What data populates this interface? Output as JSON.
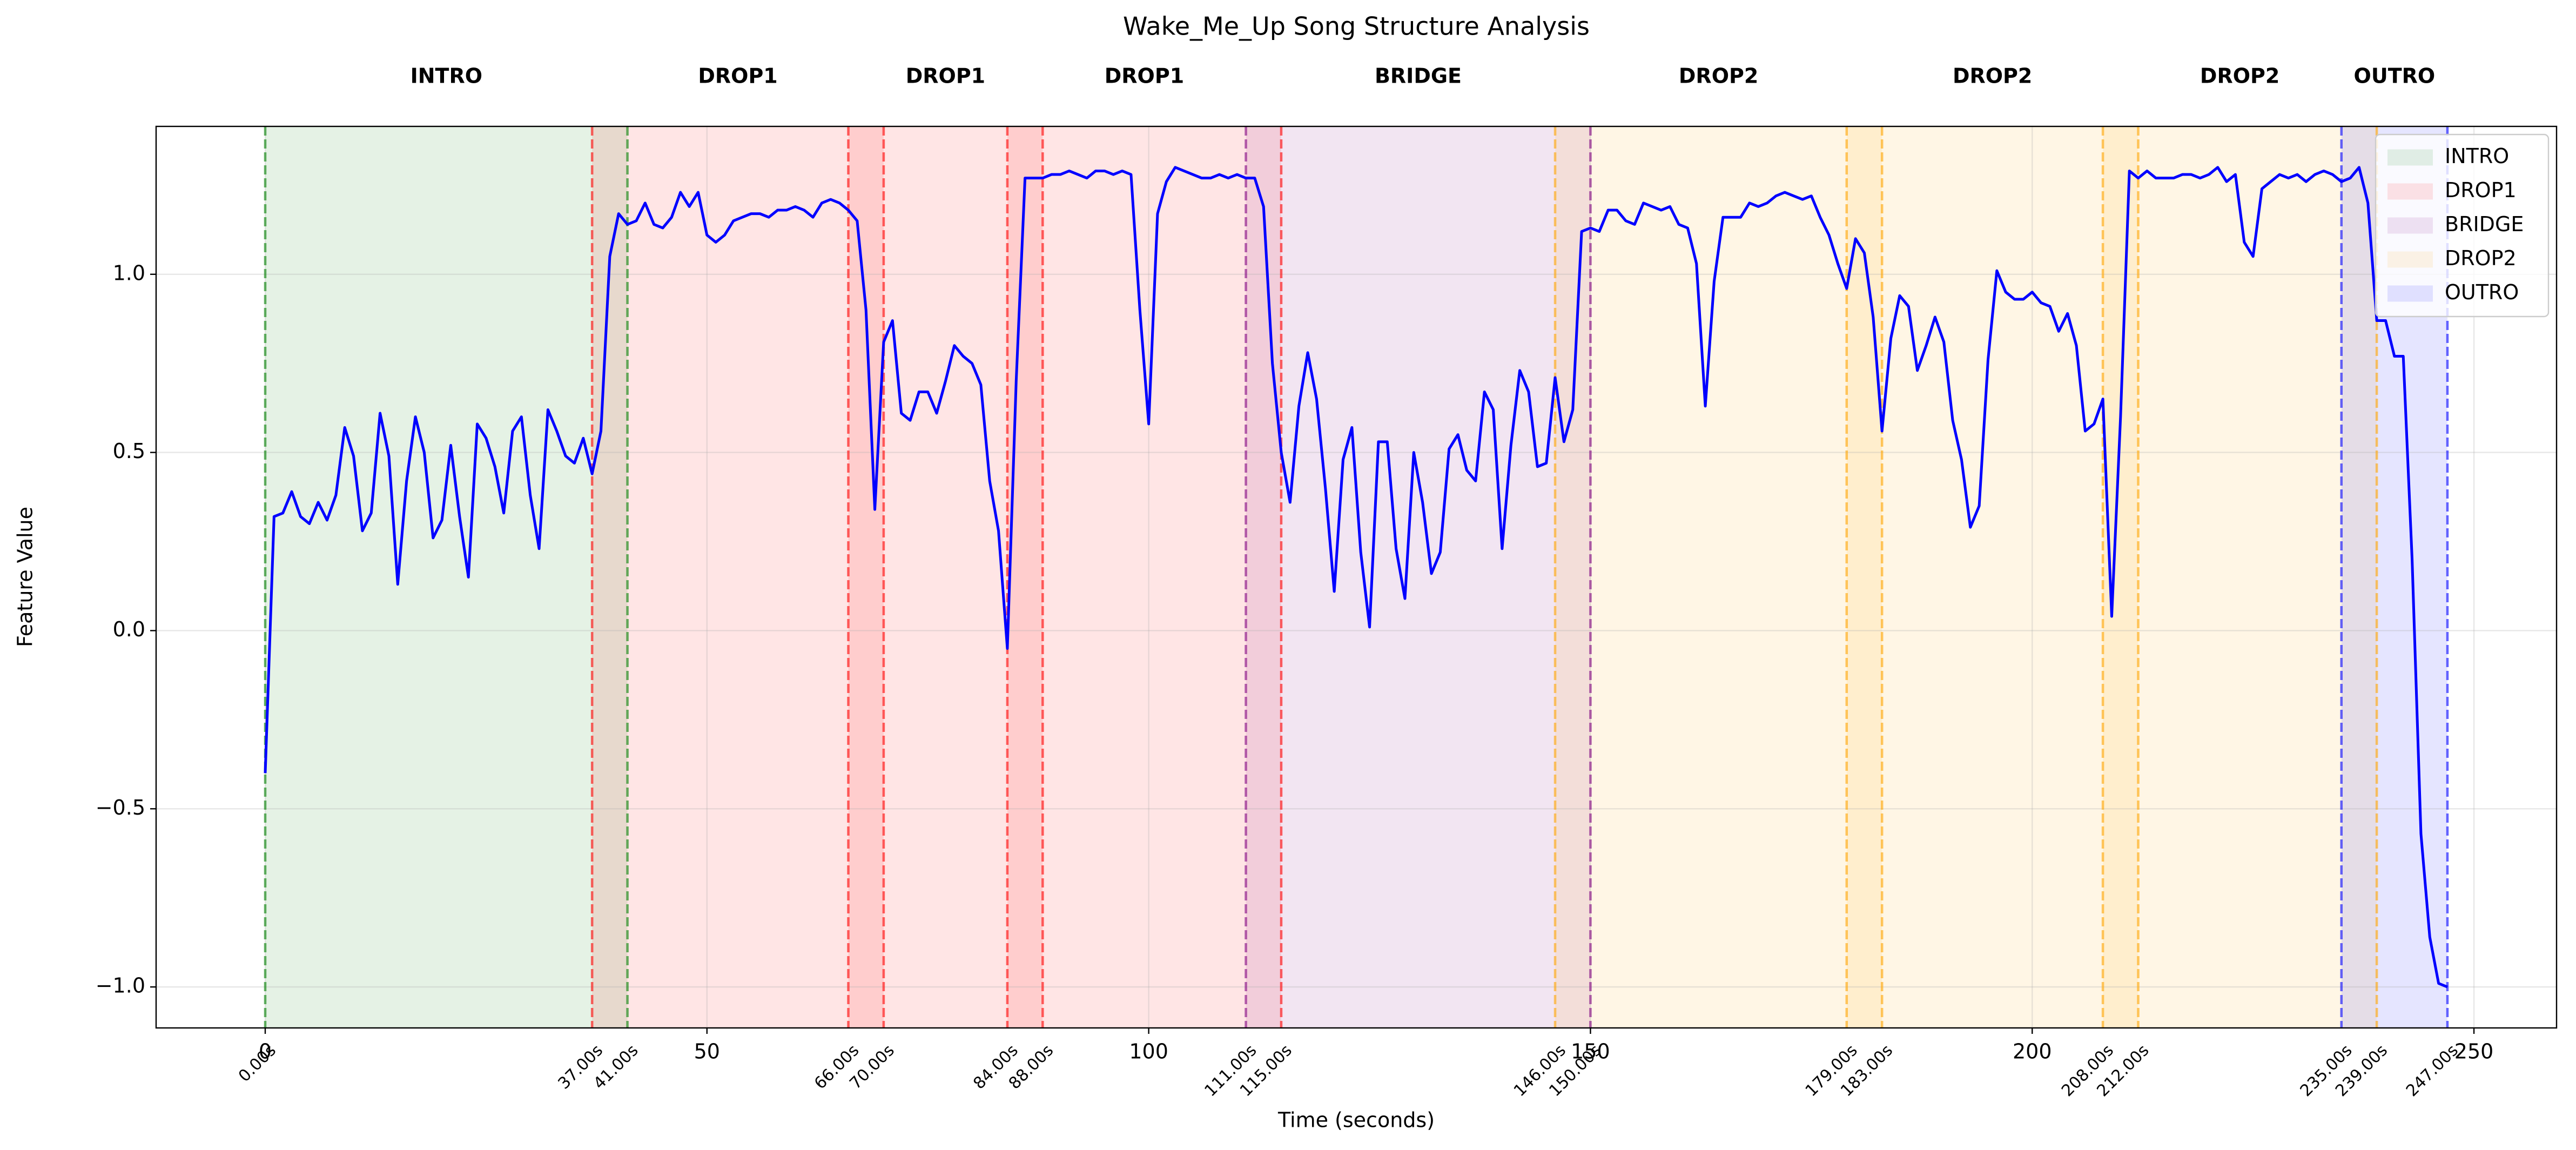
{
  "chart_data": {
    "type": "line",
    "title": "Wake_Me_Up Song Structure Analysis",
    "xlabel": "Time (seconds)",
    "ylabel": "Feature Value",
    "xlim": [
      -12.35,
      259.35
    ],
    "ylim": [
      -1.115,
      1.415
    ],
    "xticks": [
      0,
      50,
      100,
      150,
      200,
      250
    ],
    "yticks": [
      {
        "value": -1.0,
        "label": "−1.0"
      },
      {
        "value": -0.5,
        "label": "−0.5"
      },
      {
        "value": 0.0,
        "label": "0.0"
      },
      {
        "value": 0.5,
        "label": "0.5"
      },
      {
        "value": 1.0,
        "label": "1.0"
      }
    ],
    "grid": true,
    "legend": "upper right",
    "color": "#0000ff",
    "section_types": [
      {
        "name": "INTRO",
        "color": "#008000"
      },
      {
        "name": "DROP1",
        "color": "#ff0000"
      },
      {
        "name": "BRIDGE",
        "color": "#800080"
      },
      {
        "name": "DROP2",
        "color": "#ffa500"
      },
      {
        "name": "OUTRO",
        "color": "#0000ff"
      }
    ],
    "sections": [
      {
        "name": "INTRO",
        "start": 0,
        "end": 41
      },
      {
        "name": "DROP1",
        "start": 37,
        "end": 70
      },
      {
        "name": "DROP1",
        "start": 66,
        "end": 88
      },
      {
        "name": "DROP1",
        "start": 84,
        "end": 115
      },
      {
        "name": "BRIDGE",
        "start": 111,
        "end": 150
      },
      {
        "name": "DROP2",
        "start": 146,
        "end": 183
      },
      {
        "name": "DROP2",
        "start": 179,
        "end": 212
      },
      {
        "name": "DROP2",
        "start": 208,
        "end": 239
      },
      {
        "name": "OUTRO",
        "start": 235,
        "end": 247
      }
    ],
    "boundaries": [
      {
        "value": 0,
        "label": "0.00s"
      },
      {
        "value": 37,
        "label": "37.00s"
      },
      {
        "value": 41,
        "label": "41.00s"
      },
      {
        "value": 66,
        "label": "66.00s"
      },
      {
        "value": 70,
        "label": "70.00s"
      },
      {
        "value": 84,
        "label": "84.00s"
      },
      {
        "value": 88,
        "label": "88.00s"
      },
      {
        "value": 111,
        "label": "111.00s"
      },
      {
        "value": 115,
        "label": "115.00s"
      },
      {
        "value": 146,
        "label": "146.00s"
      },
      {
        "value": 150,
        "label": "150.00s"
      },
      {
        "value": 179,
        "label": "179.00s"
      },
      {
        "value": 183,
        "label": "183.00s"
      },
      {
        "value": 208,
        "label": "208.00s"
      },
      {
        "value": 212,
        "label": "212.00s"
      },
      {
        "value": 235,
        "label": "235.00s"
      },
      {
        "value": 239,
        "label": "239.00s"
      },
      {
        "value": 247,
        "label": "247.00s"
      }
    ],
    "x": [
      0,
      1,
      2,
      3,
      4,
      5,
      6,
      7,
      8,
      9,
      10,
      11,
      12,
      13,
      14,
      15,
      16,
      17,
      18,
      19,
      20,
      21,
      22,
      23,
      24,
      25,
      26,
      27,
      28,
      29,
      30,
      31,
      32,
      33,
      34,
      35,
      36,
      37,
      38,
      39,
      40,
      41,
      42,
      43,
      44,
      45,
      46,
      47,
      48,
      49,
      50,
      51,
      52,
      53,
      54,
      55,
      56,
      57,
      58,
      59,
      60,
      61,
      62,
      63,
      64,
      65,
      66,
      67,
      68,
      69,
      70,
      71,
      72,
      73,
      74,
      75,
      76,
      77,
      78,
      79,
      80,
      81,
      82,
      83,
      84,
      85,
      86,
      87,
      88,
      89,
      90,
      91,
      92,
      93,
      94,
      95,
      96,
      97,
      98,
      99,
      100,
      101,
      102,
      103,
      104,
      105,
      106,
      107,
      108,
      109,
      110,
      111,
      112,
      113,
      114,
      115,
      116,
      117,
      118,
      119,
      120,
      121,
      122,
      123,
      124,
      125,
      126,
      127,
      128,
      129,
      130,
      131,
      132,
      133,
      134,
      135,
      136,
      137,
      138,
      139,
      140,
      141,
      142,
      143,
      144,
      145,
      146,
      147,
      148,
      149,
      150,
      151,
      152,
      153,
      154,
      155,
      156,
      157,
      158,
      159,
      160,
      161,
      162,
      163,
      164,
      165,
      166,
      167,
      168,
      169,
      170,
      171,
      172,
      173,
      174,
      175,
      176,
      177,
      178,
      179,
      180,
      181,
      182,
      183,
      184,
      185,
      186,
      187,
      188,
      189,
      190,
      191,
      192,
      193,
      194,
      195,
      196,
      197,
      198,
      199,
      200,
      201,
      202,
      203,
      204,
      205,
      206,
      207,
      208,
      209,
      210,
      211,
      212,
      213,
      214,
      215,
      216,
      217,
      218,
      219,
      220,
      221,
      222,
      223,
      224,
      225,
      226,
      227,
      228,
      229,
      230,
      231,
      232,
      233,
      234,
      235,
      236,
      237,
      238,
      239,
      240,
      241,
      242,
      243,
      244,
      245,
      246,
      247
    ],
    "values": [
      -0.4,
      0.32,
      0.33,
      0.39,
      0.32,
      0.3,
      0.36,
      0.31,
      0.38,
      0.57,
      0.49,
      0.28,
      0.33,
      0.61,
      0.49,
      0.13,
      0.42,
      0.6,
      0.5,
      0.26,
      0.31,
      0.52,
      0.32,
      0.15,
      0.58,
      0.54,
      0.46,
      0.33,
      0.56,
      0.6,
      0.38,
      0.23,
      0.62,
      0.56,
      0.49,
      0.47,
      0.54,
      0.44,
      0.56,
      1.05,
      1.17,
      1.14,
      1.15,
      1.2,
      1.14,
      1.13,
      1.16,
      1.23,
      1.19,
      1.23,
      1.11,
      1.09,
      1.11,
      1.15,
      1.16,
      1.17,
      1.17,
      1.16,
      1.18,
      1.18,
      1.19,
      1.18,
      1.16,
      1.2,
      1.21,
      1.2,
      1.18,
      1.15,
      0.9,
      0.34,
      0.81,
      0.87,
      0.61,
      0.59,
      0.67,
      0.67,
      0.61,
      0.7,
      0.8,
      0.77,
      0.75,
      0.69,
      0.42,
      0.28,
      -0.05,
      0.7,
      1.27,
      1.27,
      1.27,
      1.28,
      1.28,
      1.29,
      1.28,
      1.27,
      1.29,
      1.29,
      1.28,
      1.29,
      1.28,
      0.9,
      0.58,
      1.17,
      1.26,
      1.3,
      1.29,
      1.28,
      1.27,
      1.27,
      1.28,
      1.27,
      1.28,
      1.27,
      1.27,
      1.19,
      0.75,
      0.5,
      0.36,
      0.63,
      0.78,
      0.65,
      0.4,
      0.11,
      0.48,
      0.57,
      0.22,
      0.01,
      0.53,
      0.53,
      0.23,
      0.09,
      0.5,
      0.36,
      0.16,
      0.22,
      0.51,
      0.55,
      0.45,
      0.42,
      0.67,
      0.62,
      0.23,
      0.52,
      0.73,
      0.67,
      0.46,
      0.47,
      0.71,
      0.53,
      0.62,
      1.12,
      1.13,
      1.12,
      1.18,
      1.18,
      1.15,
      1.14,
      1.2,
      1.19,
      1.18,
      1.19,
      1.14,
      1.13,
      1.03,
      0.63,
      0.98,
      1.16,
      1.16,
      1.16,
      1.2,
      1.19,
      1.2,
      1.22,
      1.23,
      1.22,
      1.21,
      1.22,
      1.16,
      1.11,
      1.03,
      0.96,
      1.1,
      1.06,
      0.88,
      0.56,
      0.82,
      0.94,
      0.91,
      0.73,
      0.8,
      0.88,
      0.81,
      0.59,
      0.48,
      0.29,
      0.35,
      0.76,
      1.01,
      0.95,
      0.93,
      0.93,
      0.95,
      0.92,
      0.91,
      0.84,
      0.89,
      0.8,
      0.56,
      0.58,
      0.65,
      0.04,
      0.6,
      1.29,
      1.27,
      1.29,
      1.27,
      1.27,
      1.27,
      1.28,
      1.28,
      1.27,
      1.28,
      1.3,
      1.26,
      1.28,
      1.09,
      1.05,
      1.24,
      1.26,
      1.28,
      1.27,
      1.28,
      1.26,
      1.28,
      1.29,
      1.28,
      1.26,
      1.27,
      1.3,
      1.2,
      0.87,
      0.87,
      0.77,
      0.77,
      0.2,
      -0.57,
      -0.86,
      -0.99,
      -1.0
    ]
  }
}
